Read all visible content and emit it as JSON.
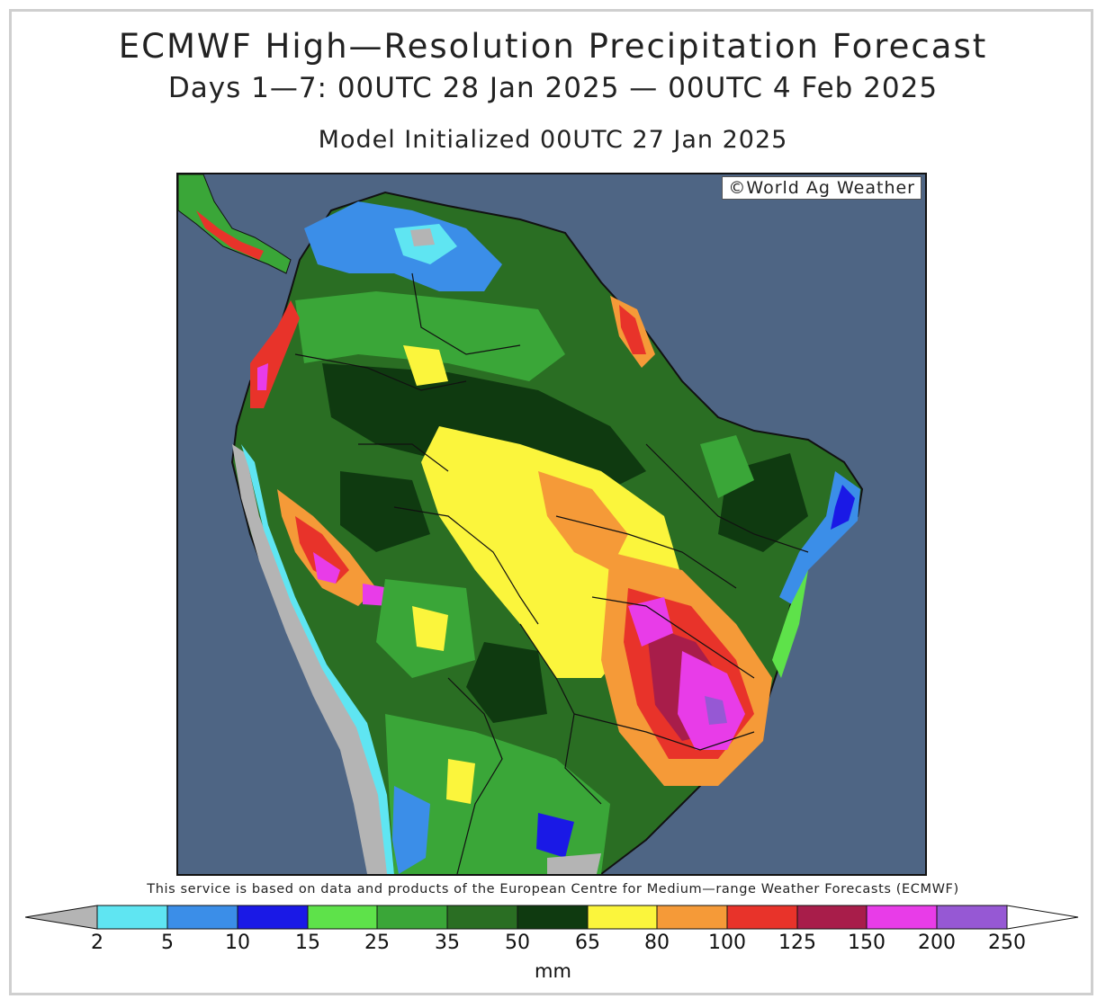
{
  "title": "ECMWF High—Resolution Precipitation Forecast",
  "subtitle": "Days 1—7: 00UTC 28 Jan 2025 — 00UTC 4 Feb 2025",
  "initialized": "Model Initialized 00UTC 27 Jan 2025",
  "watermark": "©World Ag Weather",
  "attribution": "This service is based on data and products of the European Centre for Medium—range Weather Forecasts (ECMWF)",
  "legend": {
    "unit": "mm",
    "ticks": [
      "2",
      "5",
      "10",
      "15",
      "25",
      "35",
      "50",
      "65",
      "80",
      "100",
      "125",
      "150",
      "200",
      "250"
    ],
    "colors": {
      "below": "#b4b4b4",
      "bins": [
        "#5fe5f2",
        "#3b8ee8",
        "#1a19e6",
        "#5ee24a",
        "#3aa638",
        "#2a6e23",
        "#0f3a10",
        "#fbf53c",
        "#f59a38",
        "#e8332a",
        "#a81d4a",
        "#e83ce8",
        "#9658d4"
      ],
      "above": "#ffffff"
    }
  },
  "map_colors": {
    "ocean": "#4e6584",
    "land_dry": "#b4b4b4",
    "borders": "#111111"
  }
}
